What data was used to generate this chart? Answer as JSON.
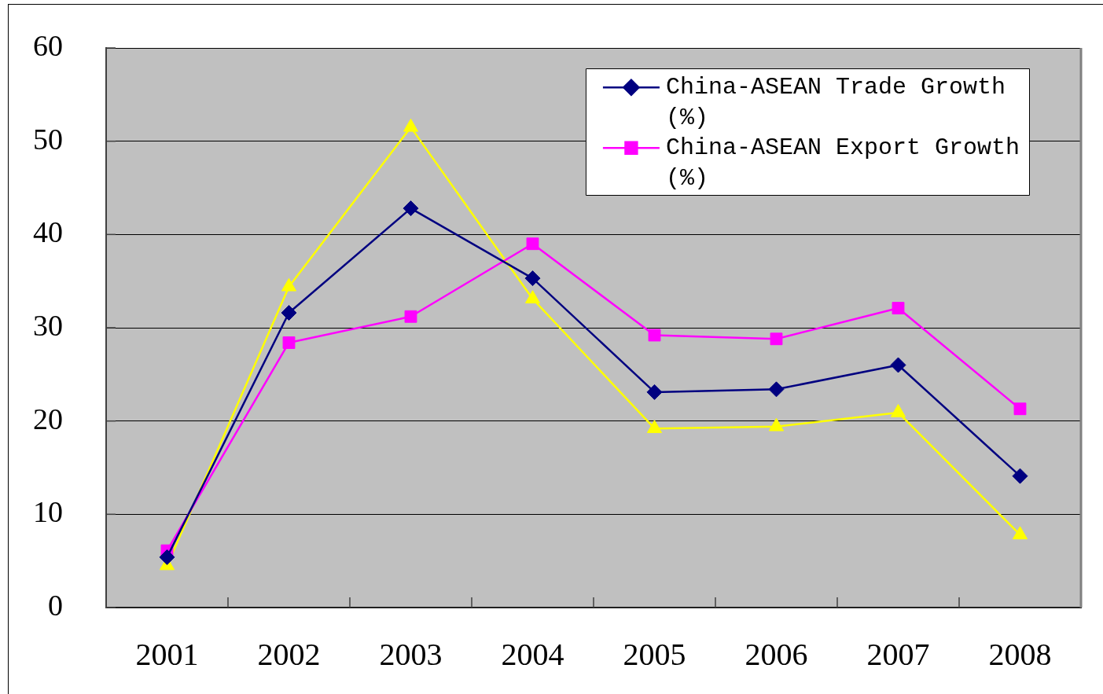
{
  "chart_data": {
    "type": "line",
    "categories": [
      "2001",
      "2002",
      "2003",
      "2004",
      "2005",
      "2006",
      "2007",
      "2008"
    ],
    "series": [
      {
        "name": "China-ASEAN Trade Growth (%)",
        "color": "#000080",
        "marker": "diamond",
        "values": [
          5.4,
          31.6,
          42.8,
          35.3,
          23.1,
          23.4,
          26.0,
          14.1
        ]
      },
      {
        "name": "China-ASEAN Export Growth (%)",
        "color": "#ff00ff",
        "marker": "square",
        "values": [
          6.1,
          28.4,
          31.2,
          39.0,
          29.2,
          28.8,
          32.1,
          21.3
        ]
      },
      {
        "color": "#ffff00",
        "marker": "triangle",
        "values": [
          4.5,
          34.4,
          51.5,
          33.1,
          19.2,
          19.4,
          20.9,
          7.8
        ]
      }
    ],
    "ylim": [
      0,
      60
    ],
    "yticks": [
      0,
      10,
      20,
      30,
      40,
      50,
      60
    ],
    "grid": "y",
    "legend": "top right"
  }
}
